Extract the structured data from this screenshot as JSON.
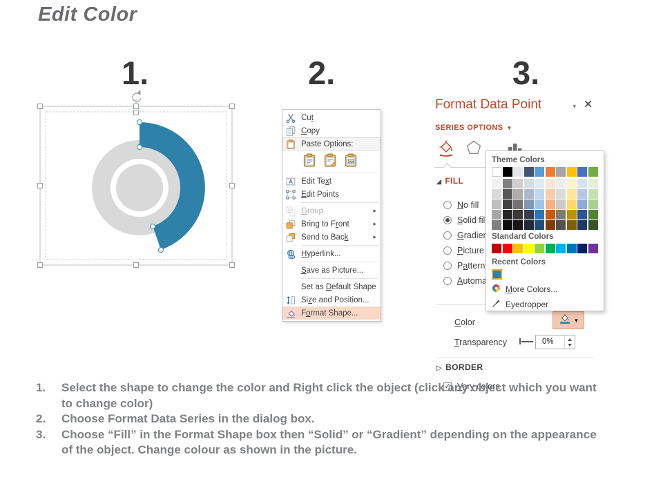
{
  "page": {
    "title": "Edit Color"
  },
  "steps": [
    {
      "number": "1."
    },
    {
      "number": "2."
    },
    {
      "number": "3."
    }
  ],
  "colors": {
    "accent_blue": "#2E81A8",
    "donut_gray": "#D9D9D9",
    "panel_red": "#B5472A",
    "menu_highlight": "#F9D8C8"
  },
  "context_menu": {
    "items": [
      {
        "icon": "scissors-icon",
        "name": "cut",
        "pre": "Cu",
        "key": "t",
        "post": ""
      },
      {
        "icon": "copy-icon",
        "name": "copy",
        "pre": "",
        "key": "C",
        "post": "opy"
      },
      {
        "icon": "paste-icon",
        "name": "paste-options",
        "pre": "Paste Options:",
        "key": "",
        "post": "",
        "boxed": true
      },
      {
        "type": "paste-icons",
        "name": "paste-options-icons",
        "icons": [
          "paste-keep-formatting-icon",
          "paste-merge-formatting-icon",
          "paste-picture-icon"
        ],
        "separator_after": true
      },
      {
        "icon": "edit-text-icon",
        "name": "edit-text",
        "pre": "Edit Te",
        "key": "x",
        "post": "t"
      },
      {
        "icon": "edit-points-icon",
        "name": "edit-points",
        "pre": "",
        "key": "E",
        "post": "dit Points",
        "separator_after": true
      },
      {
        "icon": "group-icon",
        "name": "group",
        "pre": "",
        "key": "G",
        "post": "roup",
        "disabled": true,
        "submenu": true
      },
      {
        "icon": "bring-front-icon",
        "name": "bring-to-front",
        "pre": "Bring to F",
        "key": "r",
        "post": "ont",
        "submenu": true
      },
      {
        "icon": "send-back-icon",
        "name": "send-to-back",
        "pre": "Send to Bac",
        "key": "k",
        "post": "",
        "submenu": true,
        "separator_after": true
      },
      {
        "icon": "hyperlink-icon",
        "name": "hyperlink",
        "pre": "",
        "key": "H",
        "post": "yperlink...",
        "separator_after": true
      },
      {
        "icon": "",
        "name": "save-as-picture",
        "pre": "",
        "key": "S",
        "post": "ave as Picture...",
        "separator_after": true
      },
      {
        "icon": "",
        "name": "set-as-default-shape",
        "pre": "Set as ",
        "key": "D",
        "post": "efault Shape"
      },
      {
        "icon": "size-position-icon",
        "name": "size-and-position",
        "pre": "Si",
        "key": "z",
        "post": "e and Position..."
      },
      {
        "icon": "format-shape-icon",
        "name": "format-shape",
        "pre": "F",
        "key": "o",
        "post": "rmat Shape...",
        "highlight": true
      }
    ]
  },
  "format_panel": {
    "title": "Format Data Point",
    "series_options_label": "SERIES OPTIONS",
    "fill_header": "FILL",
    "border_header": "BORDER",
    "fill_options": [
      {
        "name": "no-fill",
        "pre": "",
        "key": "N",
        "post": "o fill",
        "checked": false
      },
      {
        "name": "solid-fill",
        "pre": "",
        "key": "S",
        "post": "olid fill",
        "checked": true
      },
      {
        "name": "gradient-fill",
        "pre": "",
        "key": "G",
        "post": "radient f",
        "checked": false
      },
      {
        "name": "picture-fill",
        "pre": "",
        "key": "P",
        "post": "icture or",
        "checked": false
      },
      {
        "name": "pattern-fill",
        "pre": "P",
        "key": "a",
        "post": "ttern fill",
        "checked": false
      },
      {
        "name": "automatic-fill",
        "pre": "",
        "key": "A",
        "post": "utomatic",
        "checked": false
      }
    ],
    "vary_colors": {
      "pre": "",
      "key": "V",
      "post": "ary colors",
      "checked": true
    },
    "color_label": {
      "pre": "",
      "key": "C",
      "post": "olor"
    },
    "transparency_label": {
      "pre": "",
      "key": "T",
      "post": "ransparency"
    },
    "transparency_value": "0%"
  },
  "color_popup": {
    "theme_header": "Theme Colors",
    "standard_header": "Standard Colors",
    "recent_header": "Recent Colors",
    "more_colors": {
      "pre": "",
      "key": "M",
      "post": "ore Colors..."
    },
    "eyedropper_label": "Eyedropper",
    "theme_main": [
      "#FFFFFF",
      "#000000",
      "#E7E6E6",
      "#44546A",
      "#5B9BD5",
      "#ED7D31",
      "#A5A5A5",
      "#FFC000",
      "#4472C4",
      "#70AD47"
    ],
    "theme_variants": [
      [
        "#F2F2F2",
        "#808080",
        "#D0CECE",
        "#D6DCE5",
        "#DEEBF7",
        "#FBE5D6",
        "#EDEDED",
        "#FFF2CC",
        "#D9E2F3",
        "#E2EFDA"
      ],
      [
        "#D9D9D9",
        "#595959",
        "#AEAAAA",
        "#ACB9CA",
        "#BDD7EE",
        "#F8CBAD",
        "#DBDBDB",
        "#FFE699",
        "#B4C7E7",
        "#C6E0B4"
      ],
      [
        "#BFBFBF",
        "#404040",
        "#757171",
        "#8497B0",
        "#9DC3E6",
        "#F4B183",
        "#C9C9C9",
        "#FFD966",
        "#8EAADB",
        "#A9D18E"
      ],
      [
        "#A6A6A6",
        "#262626",
        "#3A3838",
        "#333F50",
        "#2E75B6",
        "#C55A11",
        "#7B7B7B",
        "#BF9000",
        "#2F5496",
        "#538135"
      ],
      [
        "#808080",
        "#0D0D0D",
        "#161616",
        "#222B35",
        "#1F4E79",
        "#833C00",
        "#525252",
        "#7F6000",
        "#1F3864",
        "#375623"
      ]
    ],
    "standard": [
      "#C00000",
      "#FF0000",
      "#FFC000",
      "#FFFF00",
      "#92D050",
      "#00B050",
      "#00B0F0",
      "#0070C0",
      "#002060",
      "#7030A0"
    ],
    "recent": [
      "#2E81A8"
    ]
  },
  "instructions": [
    {
      "num": "1.",
      "text": "Select the shape to change the color and Right click the object (click any object which you want to change color)"
    },
    {
      "num": "2.",
      "text": "Choose Format Data Series in the dialog box."
    },
    {
      "num": "3.",
      "text": "Choose “Fill” in the Format Shape box then “Solid” or “Gradient” depending on the appearance of the object. Change colour as shown in the picture."
    }
  ]
}
